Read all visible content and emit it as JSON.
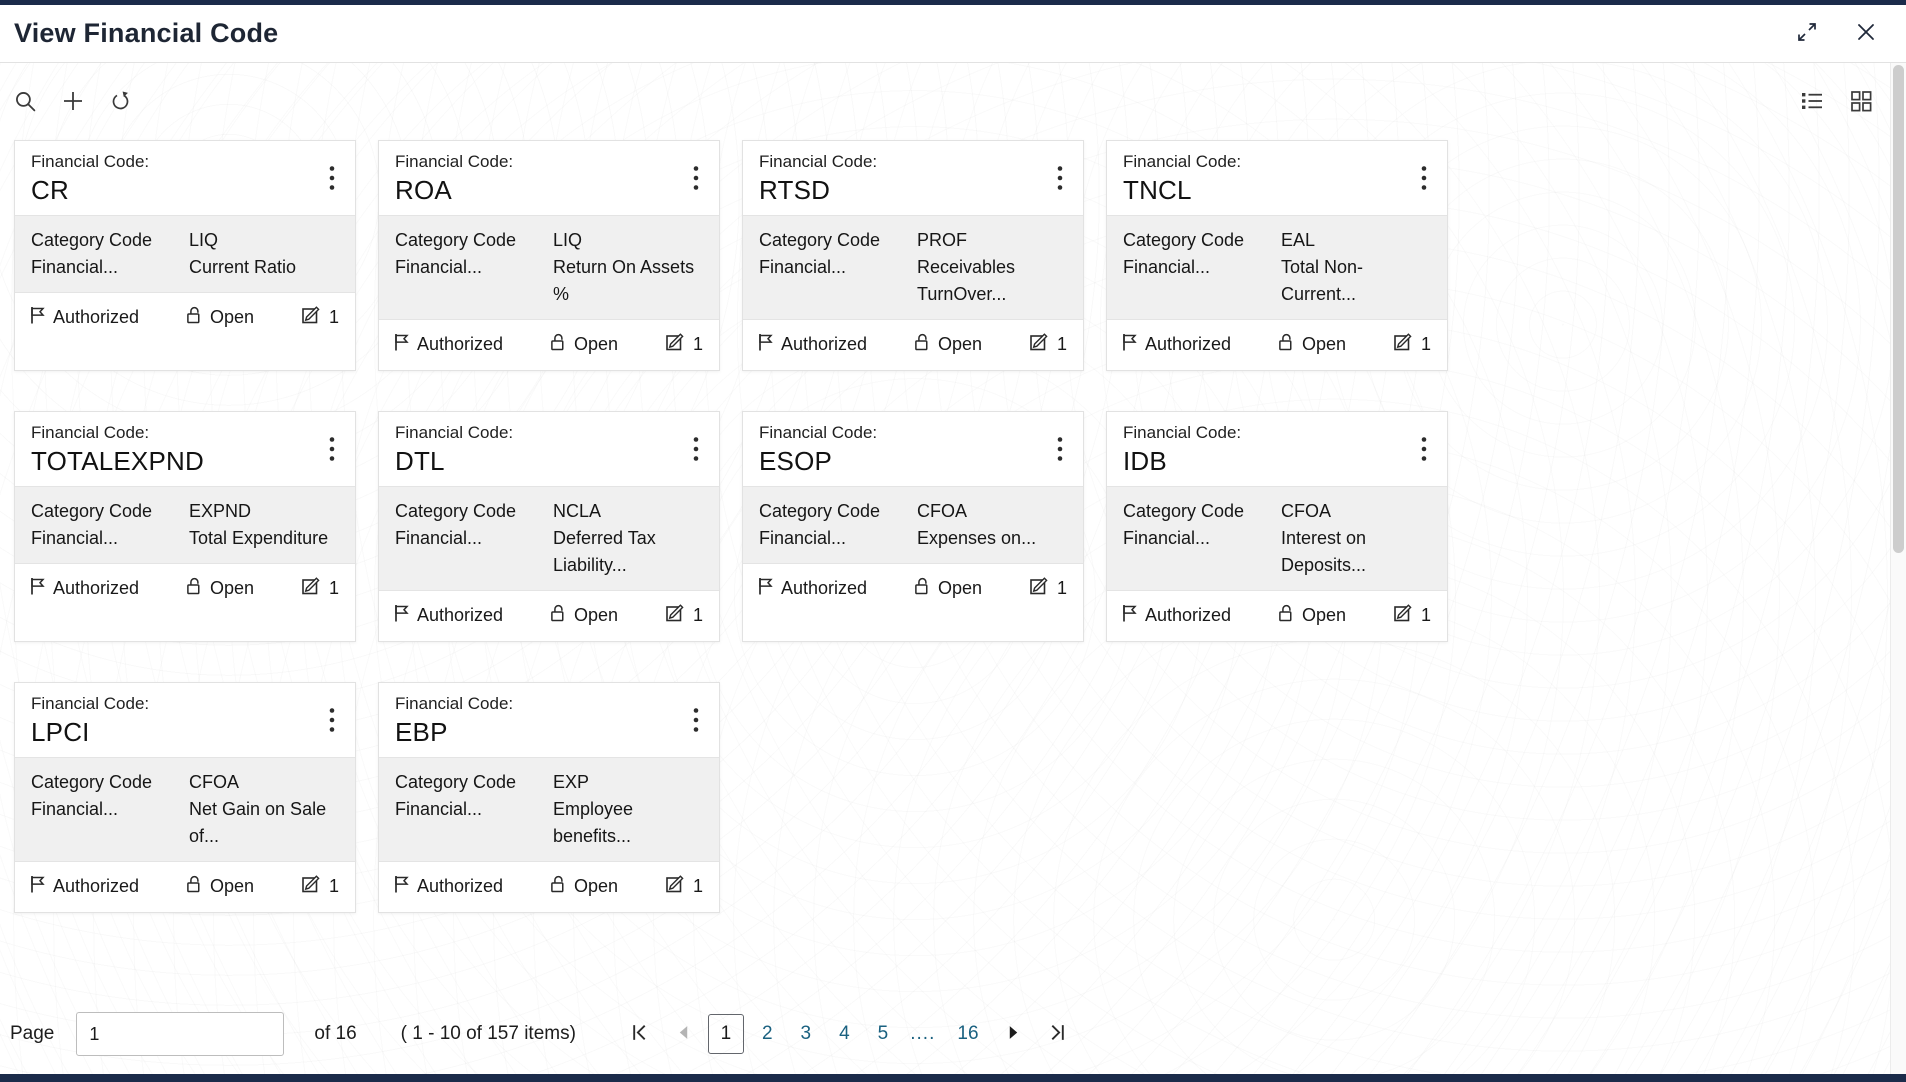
{
  "window": {
    "title": "View Financial Code"
  },
  "icons": {
    "window": [
      "expand-icon",
      "close-icon"
    ],
    "toolbar": [
      "search-icon",
      "add-icon",
      "refresh-icon"
    ],
    "view_toggle": [
      "list-view-icon",
      "grid-view-icon"
    ],
    "card": [
      "kebab-menu-icon",
      "authorized-flag-icon",
      "open-lock-icon",
      "edit-icon"
    ],
    "pager": [
      "first-page-icon",
      "previous-page-icon",
      "next-page-icon",
      "last-page-icon"
    ]
  },
  "card_labels": {
    "financial_code": "Financial Code:",
    "category_code": "Category Code",
    "financial": "Financial..."
  },
  "cards": [
    {
      "code": "CR",
      "category": "LIQ",
      "description": "Current Ratio",
      "auth_status": "Authorized",
      "record_status": "Open",
      "edit_count": "1"
    },
    {
      "code": "ROA",
      "category": "LIQ",
      "description": "Return On Assets %",
      "auth_status": "Authorized",
      "record_status": "Open",
      "edit_count": "1"
    },
    {
      "code": "RTSD",
      "category": "PROF",
      "description": "Receivables TurnOver...",
      "auth_status": "Authorized",
      "record_status": "Open",
      "edit_count": "1"
    },
    {
      "code": "TNCL",
      "category": "EAL",
      "description": "Total Non-Current...",
      "auth_status": "Authorized",
      "record_status": "Open",
      "edit_count": "1"
    },
    {
      "code": "TOTALEXPND",
      "category": "EXPND",
      "description": "Total Expenditure",
      "auth_status": "Authorized",
      "record_status": "Open",
      "edit_count": "1"
    },
    {
      "code": "DTL",
      "category": "NCLA",
      "description": "Deferred Tax Liability...",
      "auth_status": "Authorized",
      "record_status": "Open",
      "edit_count": "1"
    },
    {
      "code": "ESOP",
      "category": "CFOA",
      "description": "Expenses on...",
      "auth_status": "Authorized",
      "record_status": "Open",
      "edit_count": "1"
    },
    {
      "code": "IDB",
      "category": "CFOA",
      "description": "Interest on Deposits...",
      "auth_status": "Authorized",
      "record_status": "Open",
      "edit_count": "1"
    },
    {
      "code": "LPCI",
      "category": "CFOA",
      "description": "Net Gain on Sale of...",
      "auth_status": "Authorized",
      "record_status": "Open",
      "edit_count": "1"
    },
    {
      "code": "EBP",
      "category": "EXP",
      "description": "Employee benefits...",
      "auth_status": "Authorized",
      "record_status": "Open",
      "edit_count": "1"
    }
  ],
  "pagination": {
    "page_label": "Page",
    "page_input_value": "1",
    "of_label": "of 16",
    "items_summary": "( 1 - 10 of 157 items)",
    "pages": [
      {
        "label": "1",
        "current": true
      },
      {
        "label": "2"
      },
      {
        "label": "3"
      },
      {
        "label": "4"
      },
      {
        "label": "5"
      },
      {
        "label": "....",
        "ellipsis": true
      },
      {
        "label": "16"
      }
    ]
  },
  "colors": {
    "accent_navy": "#1b2b4a",
    "link_blue": "#1a6180",
    "card_section_gray": "#f0f0f0",
    "icon_gray": "#3a3a3a"
  }
}
